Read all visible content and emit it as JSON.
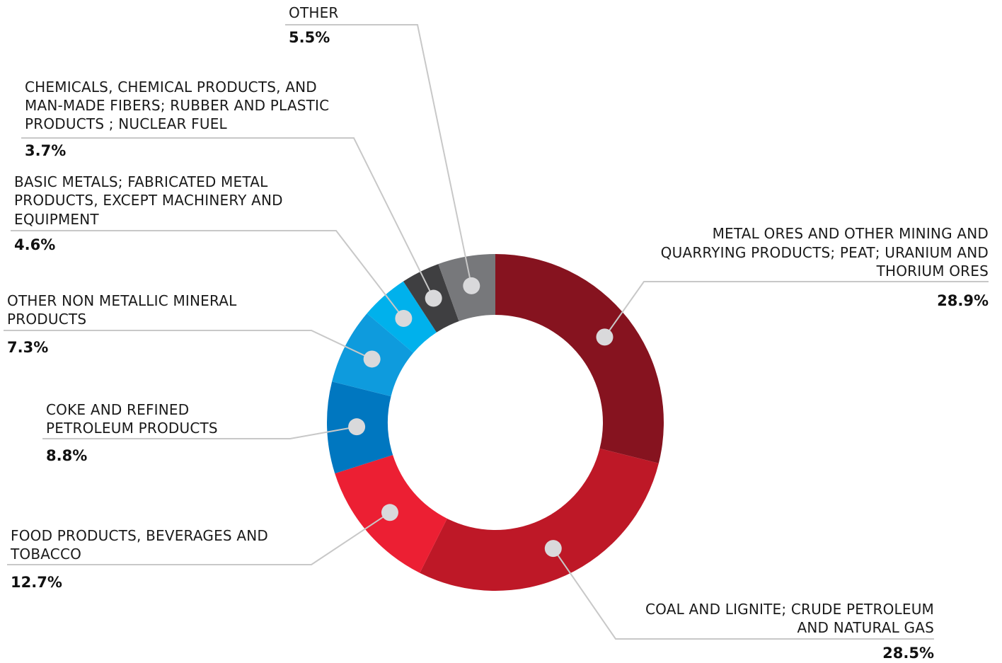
{
  "chart_data": {
    "type": "pie",
    "variant": "donut",
    "title": "",
    "slices": [
      {
        "label": "METAL ORES AND OTHER MINING AND QUARRYING PRODUCTS; PEAT; URANIUM AND THORIUM ORES",
        "label_lines": [
          "METAL ORES AND OTHER MINING AND",
          "QUARRYING PRODUCTS; PEAT; URANIUM AND",
          "THORIUM ORES"
        ],
        "value": 28.9,
        "value_label": "28.9%",
        "color": "#86131F"
      },
      {
        "label": "COAL AND LIGNITE; CRUDE PETROLEUM AND NATURAL GAS",
        "label_lines": [
          "COAL AND LIGNITE; CRUDE PETROLEUM",
          "AND NATURAL GAS"
        ],
        "value": 28.5,
        "value_label": "28.5%",
        "color": "#BE1827"
      },
      {
        "label": "FOOD PRODUCTS, BEVERAGES AND TOBACCO",
        "label_lines": [
          "FOOD PRODUCTS, BEVERAGES AND",
          "TOBACCO"
        ],
        "value": 12.7,
        "value_label": "12.7%",
        "color": "#EC1F33"
      },
      {
        "label": "COKE AND REFINED PETROLEUM PRODUCTS",
        "label_lines": [
          "COKE AND REFINED",
          "PETROLEUM PRODUCTS"
        ],
        "value": 8.8,
        "value_label": "8.8%",
        "color": "#0077C0"
      },
      {
        "label": "OTHER NON METALLIC MINERAL PRODUCTS",
        "label_lines": [
          "OTHER NON METALLIC MINERAL",
          "PRODUCTS"
        ],
        "value": 7.3,
        "value_label": "7.3%",
        "color": "#0E9BDD"
      },
      {
        "label": "BASIC METALS; FABRICATED METAL PRODUCTS, EXCEPT MACHINERY AND EQUIPMENT",
        "label_lines": [
          "BASIC METALS; FABRICATED METAL",
          "PRODUCTS, EXCEPT MACHINERY AND",
          "EQUIPMENT"
        ],
        "value": 4.6,
        "value_label": "4.6%",
        "color": "#00B1EC"
      },
      {
        "label": "CHEMICALS, CHEMICAL PRODUCTS, AND MAN-MADE FIBERS; RUBBER AND PLASTIC PRODUCTS ; NUCLEAR FUEL",
        "label_lines": [
          "CHEMICALS, CHEMICAL PRODUCTS, AND",
          "MAN-MADE FIBERS; RUBBER AND PLASTIC",
          "PRODUCTS ; NUCLEAR FUEL"
        ],
        "value": 3.7,
        "value_label": "3.7%",
        "color": "#3F3F41"
      },
      {
        "label": "OTHER",
        "label_lines": [
          "OTHER"
        ],
        "value": 5.5,
        "value_label": "5.5%",
        "color": "#77787B"
      }
    ],
    "start": "12 o'clock",
    "direction": "clockwise",
    "legend": "callout labels with leader lines",
    "marker_color": "#D9D9DB",
    "leader_color": "#C8C8C8"
  }
}
